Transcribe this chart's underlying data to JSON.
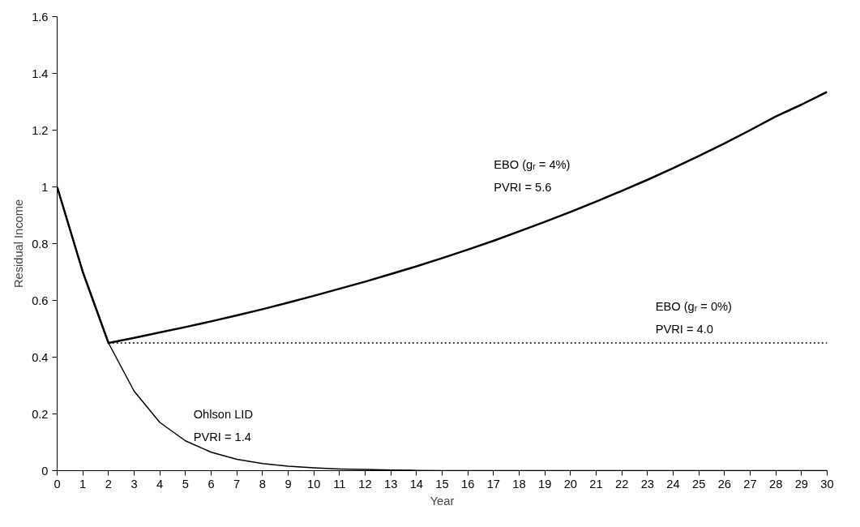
{
  "chart_data": {
    "type": "line",
    "xlabel": "Year",
    "ylabel": "Residual Income",
    "x": [
      0,
      1,
      2,
      3,
      4,
      5,
      6,
      7,
      8,
      9,
      10,
      11,
      12,
      13,
      14,
      15,
      16,
      17,
      18,
      19,
      20,
      21,
      22,
      23,
      24,
      25,
      26,
      27,
      28,
      29,
      30
    ],
    "series": [
      {
        "color": "#000000",
        "values": [
          1,
          0.7,
          0.45,
          0.468,
          0.487,
          0.506,
          0.526,
          0.547,
          0.569,
          0.592,
          0.616,
          0.641,
          0.666,
          0.693,
          0.72,
          0.749,
          0.779,
          0.81,
          0.843,
          0.877,
          0.912,
          0.948,
          0.986,
          1.025,
          1.066,
          1.109,
          1.153,
          1.2,
          1.248,
          1.29,
          1.335
        ]
      },
      {
        "color": "#000000",
        "x": [
          2,
          30
        ],
        "values": [
          0.45,
          0.45
        ],
        "line_style": "dotted"
      },
      {
        "color": "#000000",
        "values": [
          1,
          0.7,
          0.45,
          0.28,
          0.17,
          0.105,
          0.065,
          0.04,
          0.025,
          0.016,
          0.01,
          0.006,
          0.004,
          0.002,
          0.001,
          0,
          0,
          0,
          0,
          0,
          0,
          0,
          0,
          0,
          0,
          0,
          0,
          0,
          0,
          0,
          0
        ]
      }
    ],
    "annotations": [
      "EBO (gᵣ = 4%)",
      "PVRI = 5.6",
      "EBO (gᵣ = 0%)",
      "PVRI = 4.0",
      "Ohlson LID",
      "PVRI = 1.4"
    ],
    "xlim": [
      0,
      30
    ],
    "xticks": [
      0,
      1,
      2,
      3,
      4,
      5,
      6,
      7,
      8,
      9,
      10,
      11,
      12,
      13,
      14,
      15,
      16,
      17,
      18,
      19,
      20,
      21,
      22,
      23,
      24,
      25,
      26,
      27,
      28,
      29,
      30
    ],
    "ylim": [
      0,
      1.6
    ],
    "yticks": [
      0,
      0.2,
      0.4,
      0.6,
      0.8,
      1,
      1.2,
      1.4,
      1.6
    ],
    "grid": false,
    "marker": "none",
    "line_style": "solid"
  }
}
